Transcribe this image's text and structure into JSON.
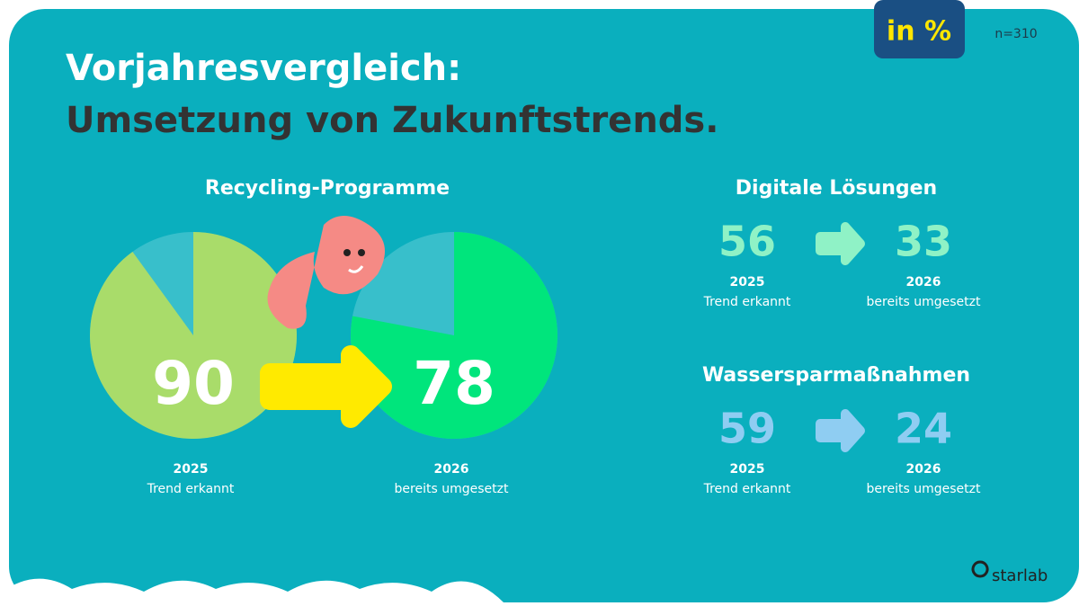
{
  "badge": "in %",
  "sample": "n=310",
  "header": {
    "line1": "Vorjahresvergleich:",
    "line2": "Umsetzung von Zukunftstrends."
  },
  "recycling_title": "Recycling-Programme",
  "chart_data": [
    {
      "type": "pie",
      "values": [
        90
      ],
      "year": "2025",
      "caption": "Trend erkannt",
      "color": "#a9dc6a",
      "rest_color": "#38bfcb"
    },
    {
      "type": "pie",
      "values": [
        78
      ],
      "year": "2026",
      "caption": "bereits umgesetzt",
      "color": "#00e57c",
      "rest_color": "#38bfcb"
    }
  ],
  "comparisons": [
    {
      "title": "Digitale Lösungen",
      "color": "#8ff2c6",
      "from": {
        "value": 56,
        "year": "2025",
        "caption": "Trend erkannt"
      },
      "to": {
        "value": 33,
        "year": "2026",
        "caption": "bereits umgesetzt"
      }
    },
    {
      "title": "Wassersparmaßnahmen",
      "color": "#8fcdf2",
      "from": {
        "value": 59,
        "year": "2025",
        "caption": "Trend erkannt"
      },
      "to": {
        "value": 24,
        "year": "2026",
        "caption": "bereits umgesetzt"
      }
    }
  ],
  "logo": "starlab"
}
